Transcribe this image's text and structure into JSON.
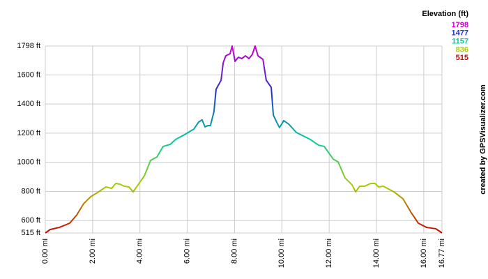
{
  "chart_data": {
    "type": "line",
    "credit": "created by GPSVisualizer.com",
    "legend": {
      "title": "Elevation (ft)",
      "entries": [
        {
          "value": 1798,
          "color": "#cc00cc"
        },
        {
          "value": 1477,
          "color": "#2233cc"
        },
        {
          "value": 1157,
          "color": "#00cc99"
        },
        {
          "value": 836,
          "color": "#aacc00"
        },
        {
          "value": 515,
          "color": "#cc0000"
        }
      ]
    },
    "x": [
      0,
      0.21,
      0.59,
      1.03,
      1.33,
      1.62,
      1.92,
      2.21,
      2.56,
      2.8,
      2.98,
      3.15,
      3.33,
      3.54,
      3.71,
      3.92,
      4.19,
      4.45,
      4.72,
      4.98,
      5.28,
      5.51,
      5.89,
      6.28,
      6.48,
      6.63,
      6.75,
      6.87,
      6.98,
      7.13,
      7.22,
      7.43,
      7.52,
      7.63,
      7.81,
      7.9,
      8.02,
      8.16,
      8.31,
      8.46,
      8.61,
      8.75,
      8.87,
      8.99,
      9.2,
      9.34,
      9.55,
      9.64,
      9.78,
      9.9,
      10.08,
      10.29,
      10.61,
      11.2,
      11.55,
      11.79,
      12.17,
      12.38,
      12.67,
      12.97,
      13.12,
      13.29,
      13.5,
      13.76,
      13.94,
      14.09,
      14.29,
      14.74,
      15.12,
      15.47,
      15.77,
      16.12,
      16.51,
      16.77
    ],
    "series": [
      {
        "name": "Elevation",
        "values": [
          515,
          539,
          553,
          582,
          639,
          716,
          764,
          793,
          831,
          821,
          855,
          850,
          836,
          831,
          797,
          845,
          908,
          1013,
          1037,
          1109,
          1123,
          1157,
          1190,
          1228,
          1276,
          1291,
          1243,
          1252,
          1252,
          1348,
          1501,
          1563,
          1683,
          1731,
          1745,
          1798,
          1693,
          1721,
          1712,
          1731,
          1712,
          1740,
          1798,
          1731,
          1707,
          1563,
          1515,
          1324,
          1276,
          1238,
          1286,
          1262,
          1205,
          1157,
          1118,
          1109,
          1022,
          1003,
          893,
          845,
          797,
          836,
          836,
          855,
          855,
          831,
          836,
          797,
          750,
          654,
          582,
          553,
          544,
          515
        ]
      }
    ],
    "xlim": [
      0,
      16.77
    ],
    "ylim": [
      515,
      1798
    ],
    "xticks": [
      {
        "value": 0,
        "label": "0.00 mi"
      },
      {
        "value": 2,
        "label": "2.00 mi"
      },
      {
        "value": 4,
        "label": "4.00 mi"
      },
      {
        "value": 6,
        "label": "6.00 mi"
      },
      {
        "value": 8,
        "label": "8.00 mi"
      },
      {
        "value": 10,
        "label": "10.00 mi"
      },
      {
        "value": 12,
        "label": "12.00 mi"
      },
      {
        "value": 14,
        "label": "14.00 mi"
      },
      {
        "value": 16,
        "label": "16.00 mi"
      },
      {
        "value": 16.77,
        "label": "16.77 mi"
      }
    ],
    "yticks": [
      {
        "value": 515,
        "label": "515 ft"
      },
      {
        "value": 600,
        "label": "600 ft"
      },
      {
        "value": 800,
        "label": "800 ft"
      },
      {
        "value": 1000,
        "label": "1000 ft"
      },
      {
        "value": 1200,
        "label": "1200 ft"
      },
      {
        "value": 1400,
        "label": "1400 ft"
      },
      {
        "value": 1600,
        "label": "1600 ft"
      },
      {
        "value": 1798,
        "label": "1798 ft"
      }
    ],
    "grid": true
  }
}
